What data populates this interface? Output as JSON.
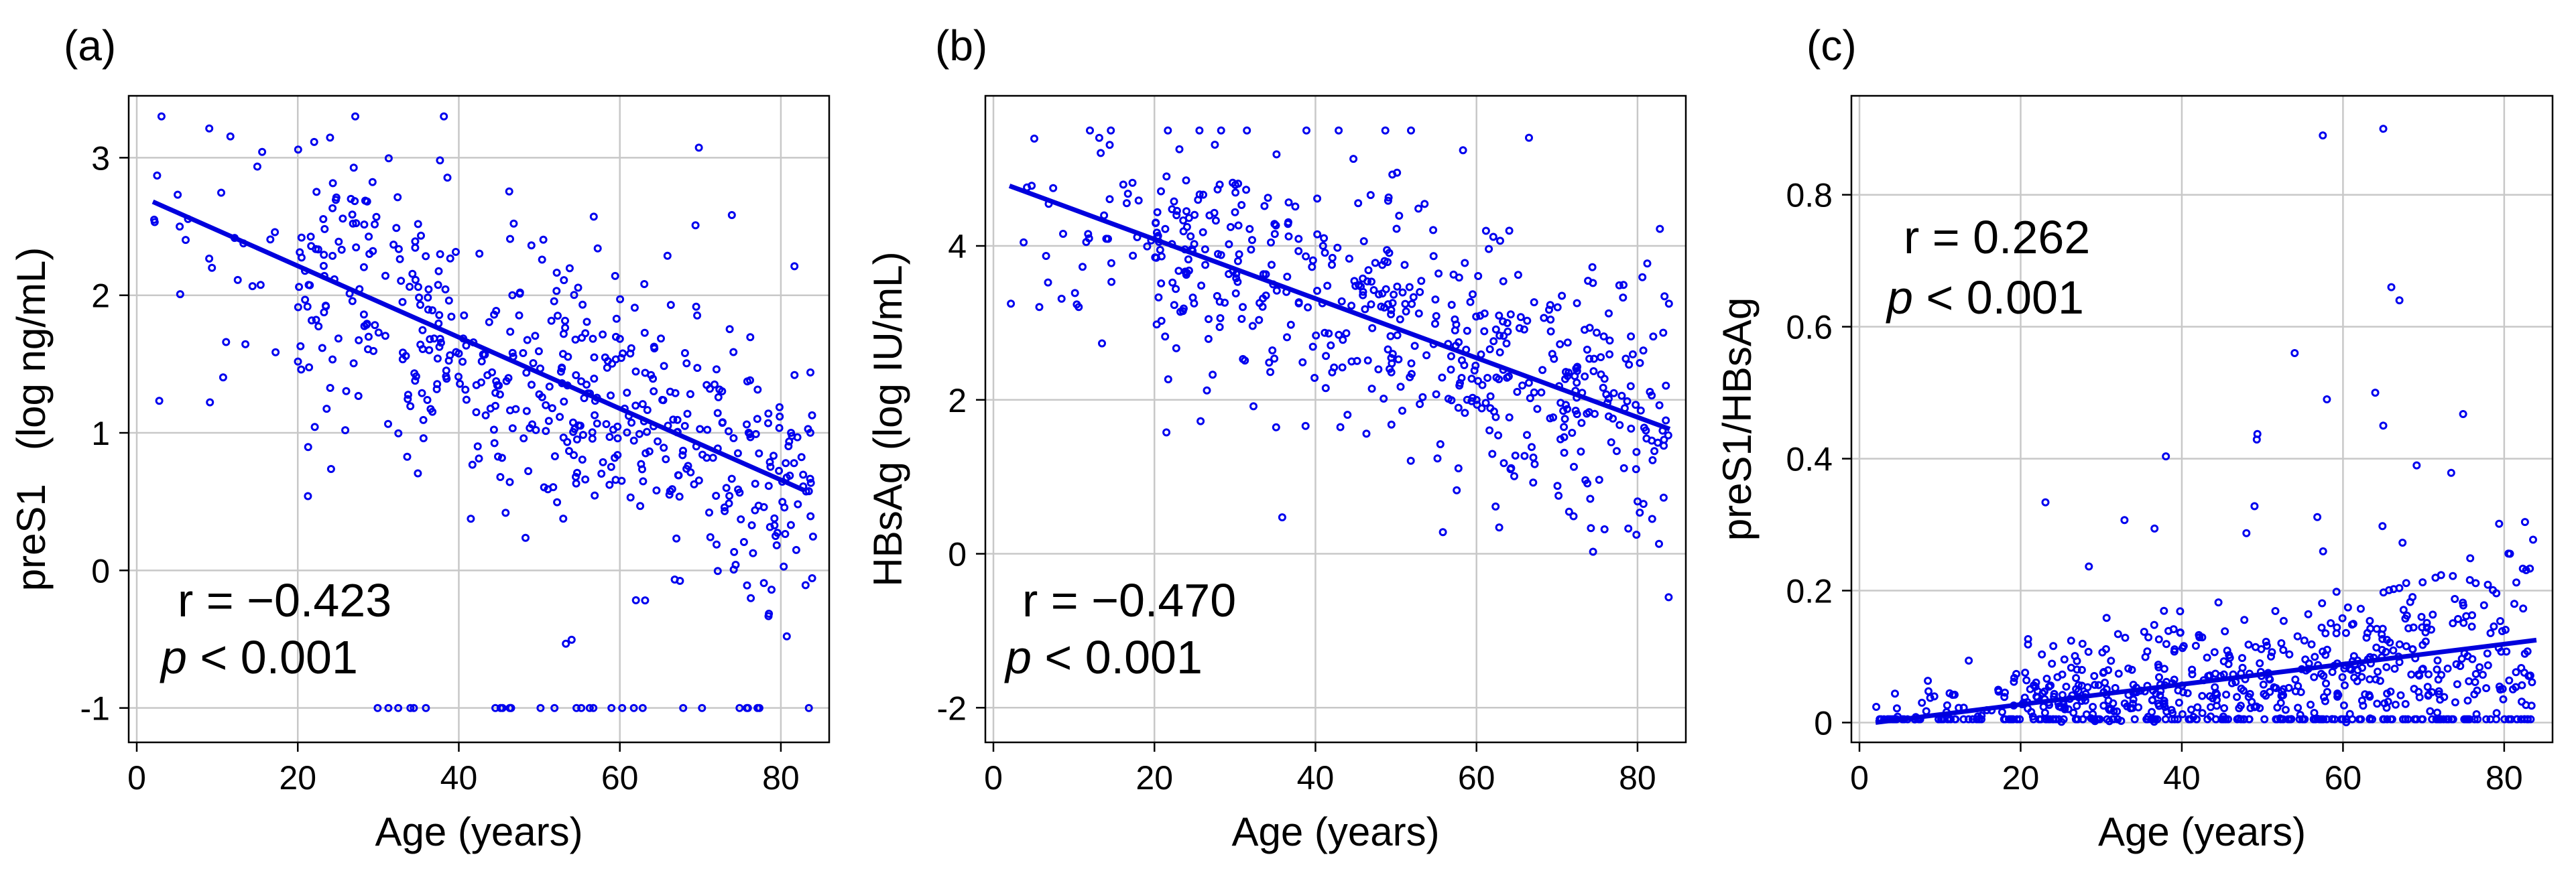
{
  "colors": {
    "points": "#0000ee",
    "line": "#0000dd",
    "grid": "#c8c8c8"
  },
  "chart_data": [
    {
      "type": "scatter",
      "panel_label": "(a)",
      "title": "",
      "xlabel": "Age (years)",
      "ylabel": "preS1   (log ng/mL)",
      "xlim": [
        -1,
        86
      ],
      "ylim": [
        -1.25,
        3.45
      ],
      "xticks": [
        0,
        20,
        40,
        60,
        80
      ],
      "xtick_labels": [
        "0",
        "20",
        "40",
        "60",
        "80"
      ],
      "yticks": [
        -1,
        0,
        1,
        2,
        3
      ],
      "ytick_labels": [
        "-1",
        "0",
        "1",
        "2",
        "3"
      ],
      "grid": true,
      "annotation": {
        "r_text": "r = −0.423",
        "p_italic": "p",
        "p_rest": " < 0.001"
      },
      "fit_line": {
        "x": [
          2,
          83
        ],
        "y": [
          2.68,
          0.58
        ]
      },
      "seed": 11,
      "series_model": {
        "n": 560,
        "intercept": 2.7,
        "slope": -0.0257,
        "spread": 0.55,
        "ymin": -1.0,
        "ymax": 3.3,
        "floor": -1.0,
        "floor_count": 28
      }
    },
    {
      "type": "scatter",
      "panel_label": "(b)",
      "title": "",
      "xlabel": "Age (years)",
      "ylabel": "HBsAg (log IU/mL)",
      "xlim": [
        -1,
        86
      ],
      "ylim": [
        -2.45,
        5.95
      ],
      "xticks": [
        0,
        20,
        40,
        60,
        80
      ],
      "xtick_labels": [
        "0",
        "20",
        "40",
        "60",
        "80"
      ],
      "yticks": [
        -2,
        0,
        2,
        4
      ],
      "ytick_labels": [
        "-2",
        "0",
        "2",
        "4"
      ],
      "grid": true,
      "annotation": {
        "r_text": "r = −0.470",
        "p_italic": "p",
        "p_rest": " < 0.001"
      },
      "fit_line": {
        "x": [
          2,
          84
        ],
        "y": [
          4.78,
          1.62
        ]
      },
      "seed": 23,
      "series_model": {
        "n": 560,
        "intercept": 4.85,
        "slope": -0.0385,
        "spread": 0.9,
        "ymin": -2.15,
        "ymax": 5.5,
        "floor": null,
        "floor_count": 0
      }
    },
    {
      "type": "scatter",
      "panel_label": "(c)",
      "title": "",
      "xlabel": "Age (years)",
      "ylabel": "preS1/HBsAg",
      "xlim": [
        -1,
        86
      ],
      "ylim": [
        -0.03,
        0.95
      ],
      "xticks": [
        0,
        20,
        40,
        60,
        80
      ],
      "xtick_labels": [
        "0",
        "20",
        "40",
        "60",
        "80"
      ],
      "yticks": [
        0,
        0.2,
        0.4,
        0.6,
        0.8
      ],
      "ytick_labels": [
        "0",
        "0.2",
        "0.4",
        "0.6",
        "0.8"
      ],
      "grid": true,
      "annotation": {
        "r_text": "r = 0.262",
        "p_italic": "p",
        "p_rest": " < 0.001"
      },
      "fit_line": {
        "x": [
          2,
          84
        ],
        "y": [
          0.0,
          0.125
        ]
      },
      "seed": 37,
      "series_model": {
        "n": 560,
        "intercept": 0.0,
        "slope": 0.0016,
        "spread": 0.07,
        "ymin": 0.0,
        "ymax": 0.91,
        "floor": 0.005,
        "floor_count": 180
      }
    }
  ]
}
